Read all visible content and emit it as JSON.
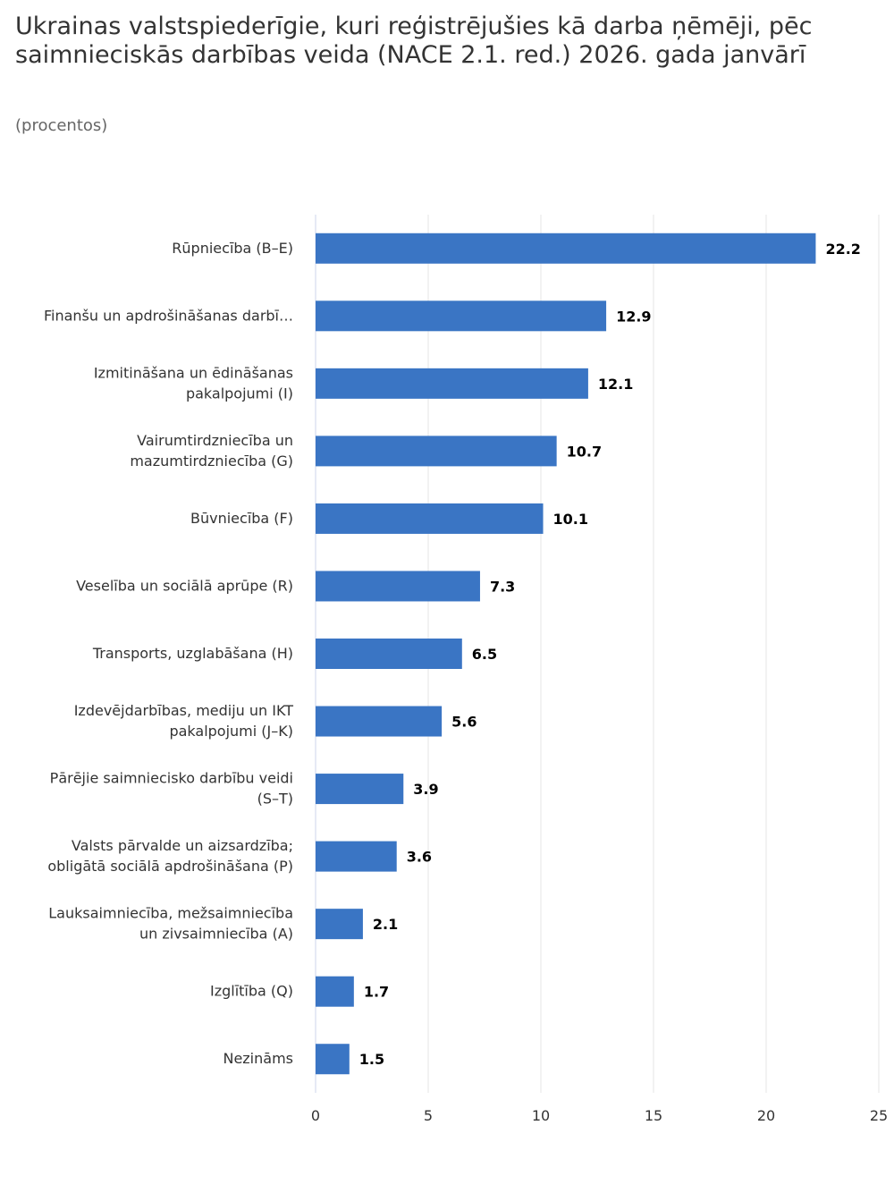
{
  "chart_data": {
    "type": "bar",
    "orientation": "horizontal",
    "title": "Ukrainas valstspiederīgie, kuri reģistrējušies kā darba ņēmēji, pēc saimnieciskās darbības veida (NACE 2.1. red.) 2026. gada janvārī",
    "subtitle": "(procentos)",
    "xlabel": "",
    "ylabel": "",
    "categories": [
      [
        "Rūpniecība (B–E)"
      ],
      [
        "Finanšu un apdrošināšanas darbī…"
      ],
      [
        "Izmitināšana un ēdināšanas",
        "pakalpojumi (I)"
      ],
      [
        "Vairumtirdzniecība un",
        "mazumtirdzniecība (G)"
      ],
      [
        "Būvniecība (F)"
      ],
      [
        "Veselība un sociālā aprūpe (R)"
      ],
      [
        "Transports, uzglabāšana (H)"
      ],
      [
        "Izdevējdarbības, mediju un IKT",
        "pakalpojumi (J–K)"
      ],
      [
        "Pārējie saimniecisko darbību veidi",
        "(S–T)"
      ],
      [
        "Valsts pārvalde un aizsardzība;",
        "obligātā sociālā apdrošināšana (P)"
      ],
      [
        "Lauksaimniecība, mežsaimniecība",
        "un zivsaimniecība (A)"
      ],
      [
        "Izglītība (Q)"
      ],
      [
        "Nezināms"
      ]
    ],
    "values": [
      22.2,
      12.9,
      12.1,
      10.7,
      10.1,
      7.3,
      6.5,
      5.6,
      3.9,
      3.6,
      2.1,
      1.7,
      1.5
    ],
    "value_labels": [
      "22.2",
      "12.9",
      "12.1",
      "10.7",
      "10.1",
      "7.3",
      "6.5",
      "5.6",
      "3.9",
      "3.6",
      "2.1",
      "1.7",
      "1.5"
    ],
    "xlim": [
      0,
      25
    ],
    "xticks": [
      0,
      5,
      10,
      15,
      20,
      25
    ],
    "xtick_labels": [
      "0",
      "5",
      "10",
      "15",
      "20",
      "25"
    ],
    "grid": true,
    "legend": "none",
    "colors": {
      "bar": "#3a75c4",
      "grid": "#e6e6e6",
      "axis": "#ccd6eb"
    }
  }
}
